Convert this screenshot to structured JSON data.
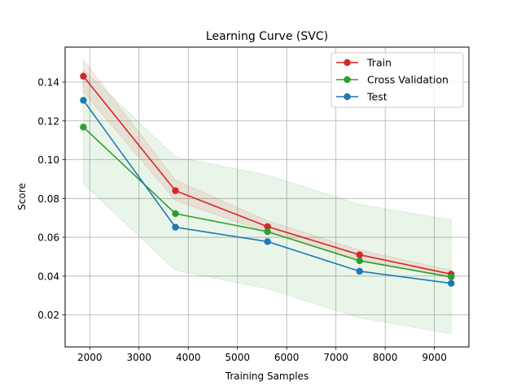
{
  "chart_data": {
    "type": "line",
    "title": "Learning Curve (SVC)",
    "xlabel": "Training Samples",
    "ylabel": "Score",
    "xlim": [
      1500,
      9700
    ],
    "ylim": [
      0.0035,
      0.158
    ],
    "xticks": [
      2000,
      3000,
      4000,
      5000,
      6000,
      7000,
      8000,
      9000
    ],
    "yticks": [
      0.02,
      0.04,
      0.06,
      0.08,
      0.1,
      0.12,
      0.14
    ],
    "ytick_labels": [
      "0.02",
      "0.04",
      "0.06",
      "0.08",
      "0.10",
      "0.12",
      "0.14"
    ],
    "grid": true,
    "legend_position": "top-right",
    "x": [
      1870,
      3740,
      5610,
      7480,
      9340
    ],
    "series": [
      {
        "name": "Train",
        "color": "#d62728",
        "values": [
          0.143,
          0.084,
          0.0655,
          0.051,
          0.041
        ],
        "band_lower": [
          0.135,
          0.079,
          0.0625,
          0.0485,
          0.039
        ],
        "band_upper": [
          0.1515,
          0.0895,
          0.0685,
          0.0535,
          0.043
        ]
      },
      {
        "name": "Cross Validation",
        "color": "#2ca02c",
        "values": [
          0.1168,
          0.0722,
          0.0629,
          0.0479,
          0.0396
        ],
        "band_lower": [
          0.0875,
          0.043,
          0.0335,
          0.0185,
          0.0103
        ],
        "band_upper": [
          0.1465,
          0.1015,
          0.092,
          0.077,
          0.069
        ]
      },
      {
        "name": "Test",
        "color": "#1f77b4",
        "values": [
          0.1306,
          0.0652,
          0.0578,
          0.0425,
          0.0363
        ]
      }
    ]
  }
}
